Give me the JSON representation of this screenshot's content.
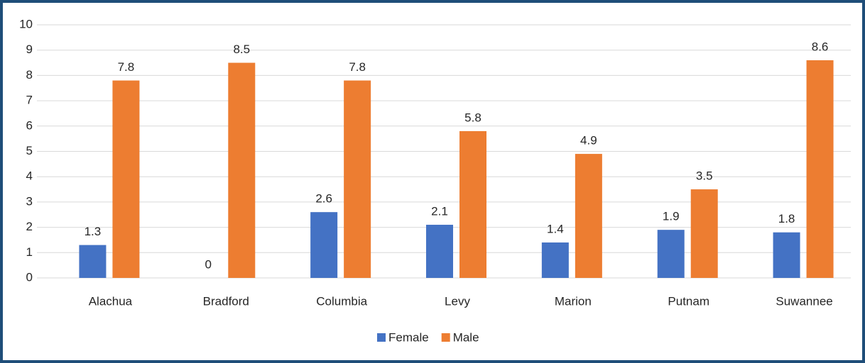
{
  "chart_data": {
    "type": "bar",
    "categories": [
      "Alachua",
      "Bradford",
      "Columbia",
      "Levy",
      "Marion",
      "Putnam",
      "Suwannee"
    ],
    "series": [
      {
        "name": "Female",
        "color": "#4472c4",
        "values": [
          1.3,
          0,
          2.6,
          2.1,
          1.4,
          1.9,
          1.8
        ]
      },
      {
        "name": "Male",
        "color": "#ed7d31",
        "values": [
          7.8,
          8.5,
          7.8,
          5.8,
          4.9,
          3.5,
          8.6
        ]
      }
    ],
    "ylim": [
      0,
      10
    ],
    "yticks": [
      0,
      1,
      2,
      3,
      4,
      5,
      6,
      7,
      8,
      9,
      10
    ],
    "grid": true,
    "legend": "bottom"
  }
}
